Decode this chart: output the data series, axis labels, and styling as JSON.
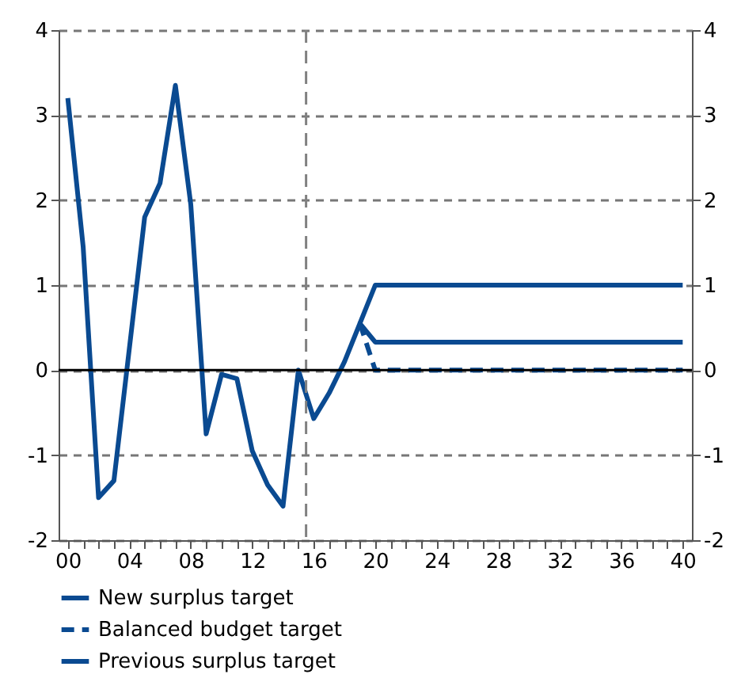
{
  "chart_data": {
    "type": "line",
    "series": [
      {
        "name": "New surplus target",
        "color": "#0a4a91",
        "line_style": "solid",
        "x": [
          0,
          1,
          2,
          3,
          4,
          5,
          6,
          7,
          8,
          9,
          10,
          11,
          12,
          13,
          14,
          15,
          16,
          17,
          18,
          19,
          20,
          21,
          22,
          23,
          24,
          25,
          26,
          27,
          28,
          29,
          30,
          31,
          32,
          33,
          34,
          35,
          36,
          37,
          38,
          39,
          40
        ],
        "values": [
          3.2,
          1.45,
          -1.5,
          -1.3,
          0.25,
          1.8,
          2.2,
          3.35,
          1.95,
          -0.75,
          -0.05,
          -0.1,
          -0.95,
          -1.35,
          -1.6,
          0,
          -0.57,
          -0.27,
          0.1,
          0.55,
          0.33,
          0.33,
          0.33,
          0.33,
          0.33,
          0.33,
          0.33,
          0.33,
          0.33,
          0.33,
          0.33,
          0.33,
          0.33,
          0.33,
          0.33,
          0.33,
          0.33,
          0.33,
          0.33,
          0.33,
          0.33
        ]
      },
      {
        "name": "Balanced budget target",
        "color": "#0a4a91",
        "line_style": "dashed",
        "x": [
          19,
          20,
          21,
          22,
          23,
          24,
          25,
          26,
          27,
          28,
          29,
          30,
          31,
          32,
          33,
          34,
          35,
          36,
          37,
          38,
          39,
          40
        ],
        "values": [
          0.55,
          0,
          0,
          0,
          0,
          0,
          0,
          0,
          0,
          0,
          0,
          0,
          0,
          0,
          0,
          0,
          0,
          0,
          0,
          0,
          0,
          0
        ]
      },
      {
        "name": "Previous surplus target",
        "color": "#0a4a91",
        "line_style": "solid",
        "x": [
          19,
          20,
          21,
          22,
          23,
          24,
          25,
          26,
          27,
          28,
          29,
          30,
          31,
          32,
          33,
          34,
          35,
          36,
          37,
          38,
          39,
          40
        ],
        "values": [
          0.55,
          1,
          1,
          1,
          1,
          1,
          1,
          1,
          1,
          1,
          1,
          1,
          1,
          1,
          1,
          1,
          1,
          1,
          1,
          1,
          1,
          1
        ]
      }
    ],
    "xlim": [
      -0.6,
      40.6
    ],
    "xticks": [
      {
        "value": 0,
        "label": "00"
      },
      {
        "value": 1,
        "label": null
      },
      {
        "value": 2,
        "label": null
      },
      {
        "value": 3,
        "label": null
      },
      {
        "value": 4,
        "label": "04"
      },
      {
        "value": 5,
        "label": null
      },
      {
        "value": 6,
        "label": null
      },
      {
        "value": 7,
        "label": null
      },
      {
        "value": 8,
        "label": "08"
      },
      {
        "value": 9,
        "label": null
      },
      {
        "value": 10,
        "label": null
      },
      {
        "value": 11,
        "label": null
      },
      12,
      {
        "value": 13,
        "label": null
      },
      {
        "value": 14,
        "label": null
      },
      {
        "value": 15,
        "label": null
      },
      16,
      {
        "value": 17,
        "label": null
      },
      {
        "value": 18,
        "label": null
      },
      {
        "value": 19,
        "label": null
      },
      20,
      {
        "value": 21,
        "label": null
      },
      {
        "value": 22,
        "label": null
      },
      {
        "value": 23,
        "label": null
      },
      24,
      {
        "value": 25,
        "label": null
      },
      {
        "value": 26,
        "label": null
      },
      {
        "value": 27,
        "label": null
      },
      28,
      {
        "value": 29,
        "label": null
      },
      {
        "value": 30,
        "label": null
      },
      {
        "value": 31,
        "label": null
      },
      32,
      {
        "value": 33,
        "label": null
      },
      {
        "value": 34,
        "label": null
      },
      {
        "value": 35,
        "label": null
      },
      36,
      {
        "value": 37,
        "label": null
      },
      {
        "value": 38,
        "label": null
      },
      {
        "value": 39,
        "label": null
      },
      40
    ],
    "ylim": [
      -2,
      4
    ],
    "yticks": [
      -2,
      -1,
      0,
      1,
      2,
      3,
      4
    ],
    "y2lim": [
      -2,
      4
    ],
    "y2ticks": [
      -2,
      -1,
      0,
      1,
      2,
      3,
      4
    ],
    "grid": "y",
    "legend": "bottom",
    "marker": "none",
    "ref_lines": [
      {
        "axis": "x",
        "value": 15.5,
        "color": "#808080",
        "line_style": "dashed"
      },
      {
        "axis": "y",
        "value": 0,
        "color": "#000000",
        "line_style": "solid"
      }
    ]
  }
}
